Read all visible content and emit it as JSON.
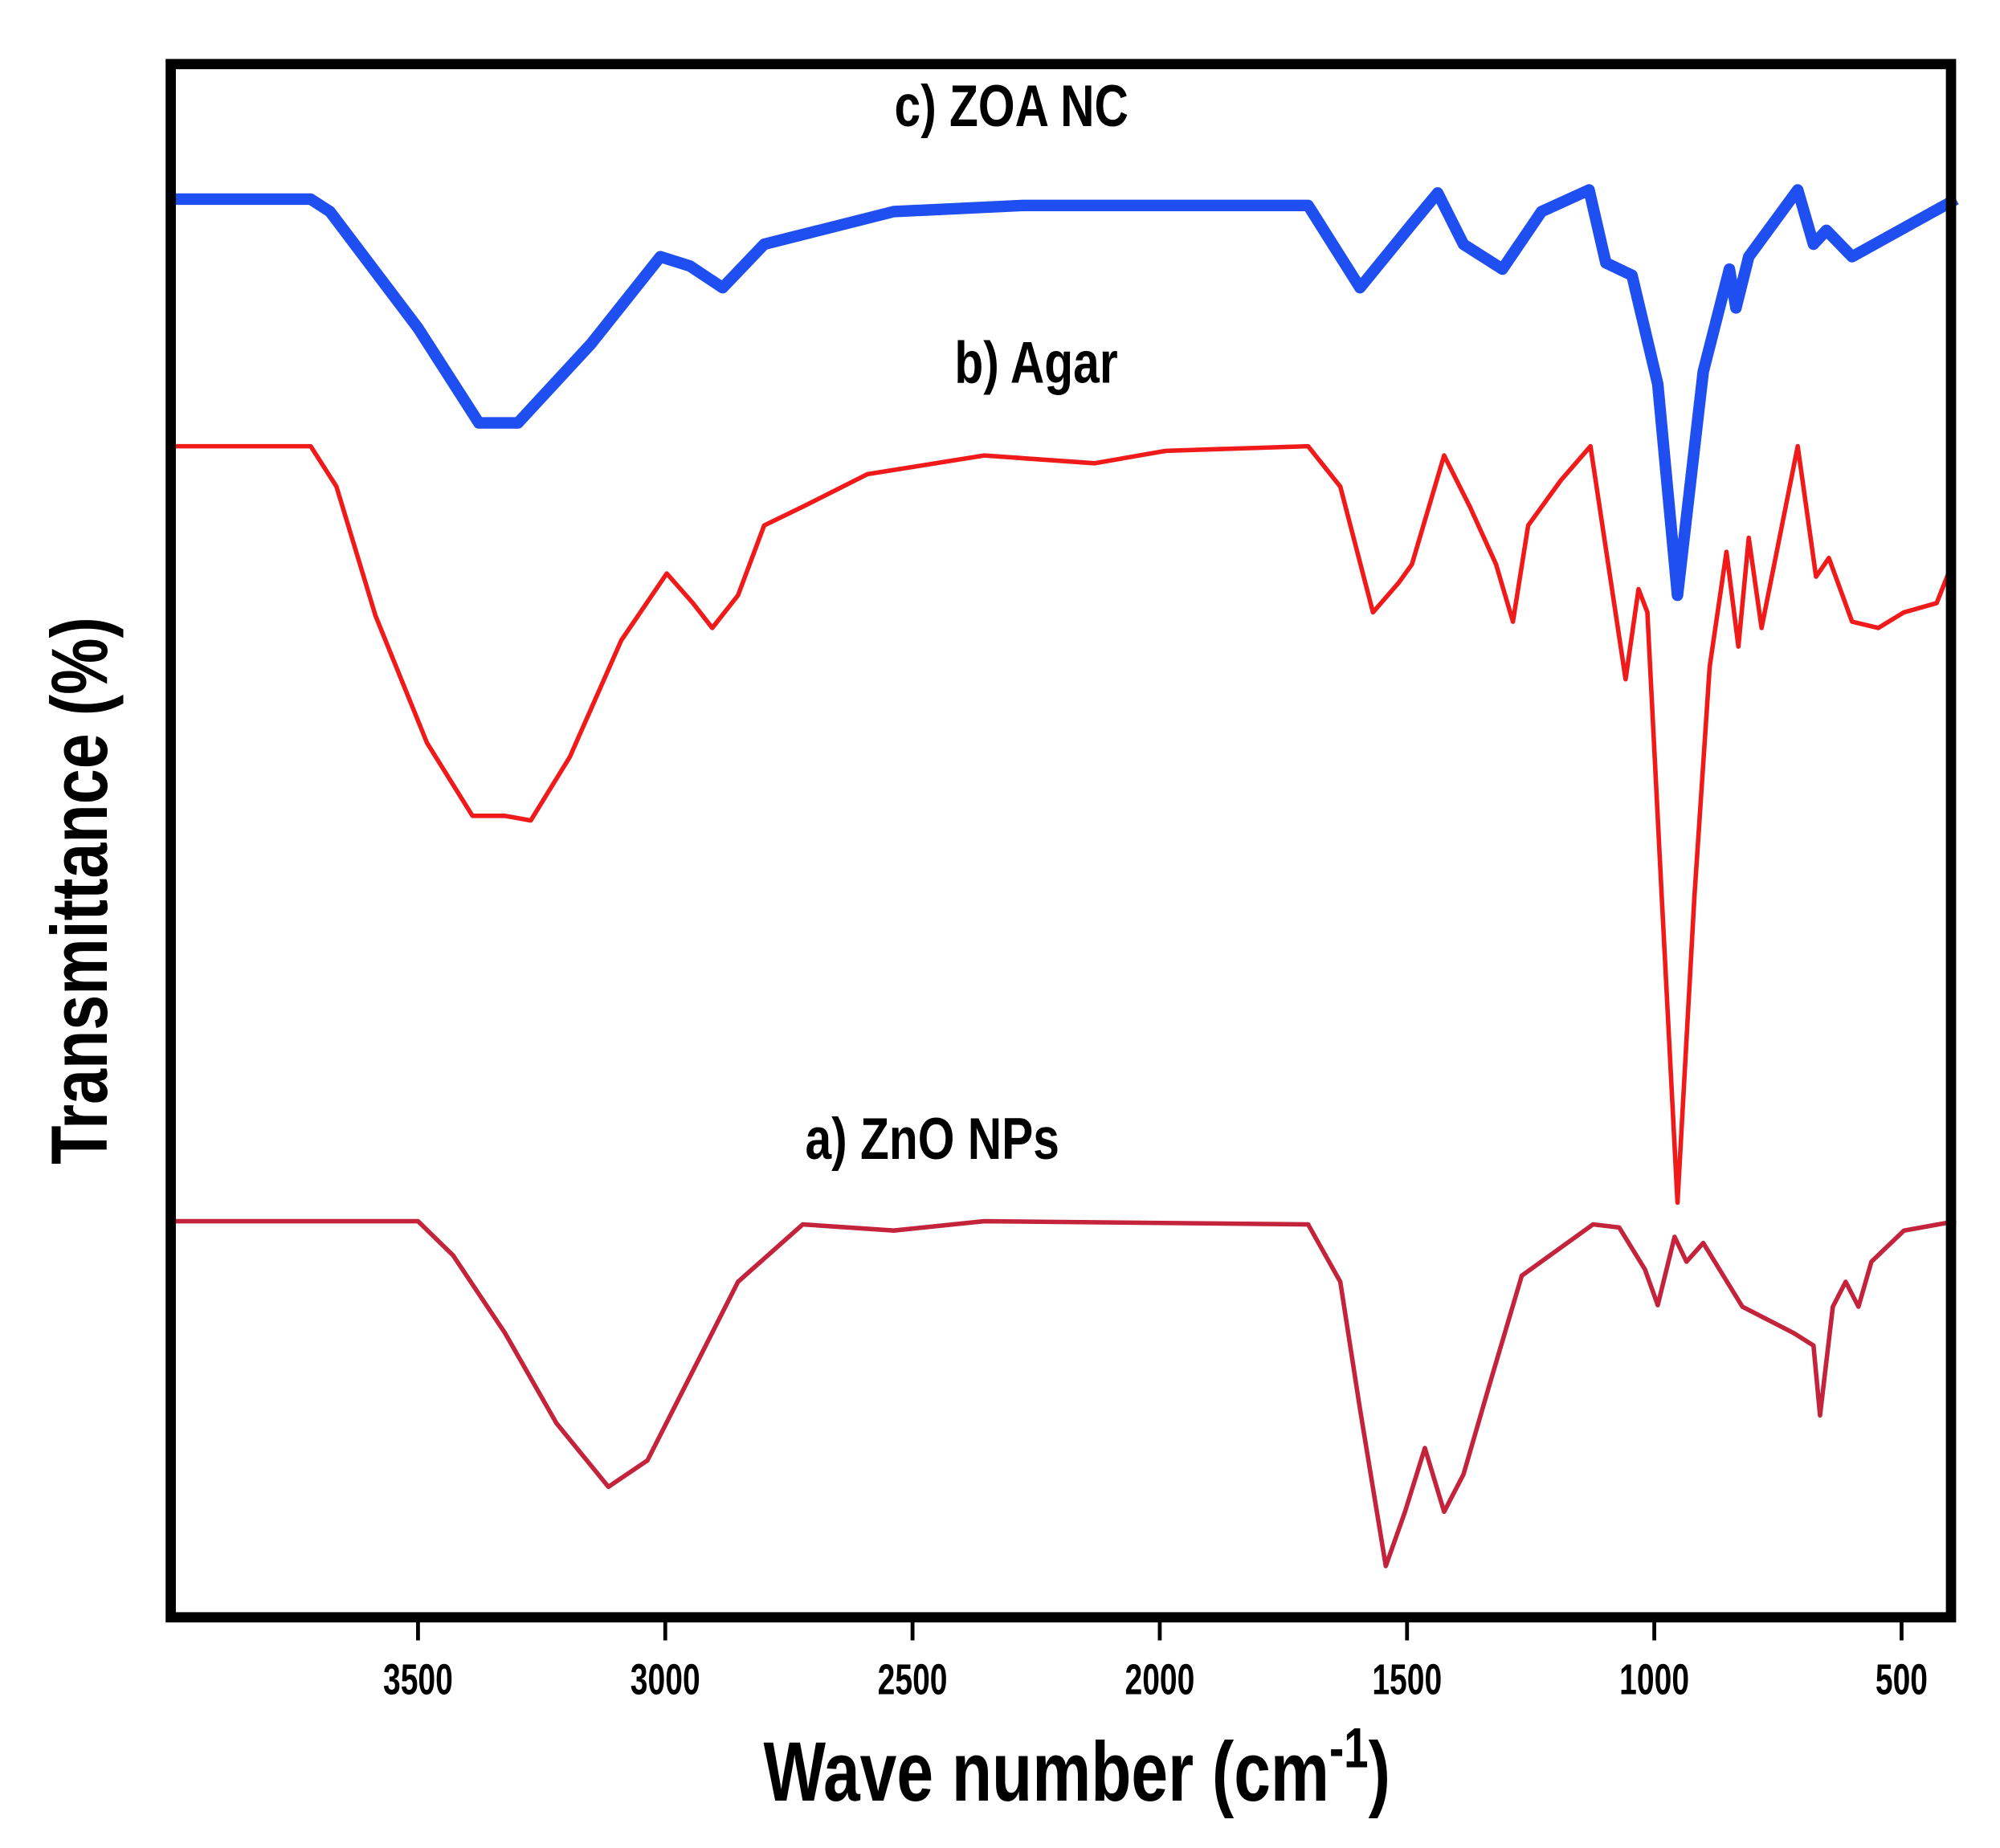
{
  "chart_data": {
    "type": "line",
    "title": "",
    "xlabel": "Wave number (cm",
    "xlabel_sup": "-1",
    "xlabel_end": ")",
    "ylabel": "Transmittance (%)",
    "xlim": [
      4000,
      400
    ],
    "x_reversed": true,
    "ylim": [
      0,
      100
    ],
    "y_ticks_shown": false,
    "grid": false,
    "legend": "none (labels placed above each curve)",
    "x_ticks": [
      3500,
      3000,
      2500,
      2000,
      1500,
      1000,
      500
    ],
    "x_tick_labels": [
      "3500",
      "3000",
      "2500",
      "2000",
      "1500",
      "1000",
      "500"
    ],
    "series": [
      {
        "name": "c) ZOA NC",
        "color": "#1f4ff0",
        "label_at": [
          2300,
          96
        ],
        "x": [
          4000,
          3717,
          3678,
          3500,
          3377,
          3298,
          3150,
          3010,
          2950,
          2884,
          2800,
          2538,
          2276,
          1700,
          1595,
          1490,
          1438,
          1386,
          1307,
          1228,
          1132,
          1098,
          1045,
          993,
          953,
          901,
          848,
          835,
          809,
          710,
          678,
          652,
          600,
          390
        ],
        "y": [
          91.3,
          91.3,
          90.5,
          83,
          76.9,
          76.9,
          82,
          87.6,
          87.0,
          85.6,
          88.4,
          90.5,
          90.9,
          90.9,
          85.6,
          89.7,
          91.7,
          88.4,
          86.8,
          90.5,
          91.9,
          87.2,
          86.4,
          79.4,
          65.8,
          80.2,
          86.8,
          84.3,
          87.6,
          91.9,
          88.4,
          89.3,
          87.6,
          91.3
        ]
      },
      {
        "name": "b) Agar",
        "color": "#f01a1a",
        "label_at": [
          2250,
          79.5
        ],
        "x": [
          4000,
          3717,
          3665,
          3586,
          3482,
          3390,
          3324,
          3272,
          3193,
          3089,
          2997,
          2944,
          2905,
          2853,
          2800,
          2722,
          2591,
          2355,
          2132,
          1988,
          1700,
          1635,
          1569,
          1517,
          1490,
          1425,
          1373,
          1320,
          1286,
          1255,
          1189,
          1129,
          1097,
          1058,
          1032,
          1014,
          985,
          953,
          919,
          888,
          854,
          830,
          809,
          783,
          710,
          673,
          647,
          600,
          547,
          495,
          429,
          398
        ],
        "y": [
          75.4,
          75.4,
          72.8,
          64.5,
          56.3,
          51.6,
          51.6,
          51.3,
          55.4,
          62.9,
          67.2,
          65.3,
          63.7,
          65.8,
          70.3,
          71.5,
          73.6,
          74.8,
          74.3,
          75.1,
          75.4,
          72.8,
          64.7,
          66.6,
          67.8,
          74.8,
          71.5,
          67.8,
          64.1,
          70.3,
          73.2,
          75.4,
          68.6,
          60.4,
          66.2,
          64.7,
          46.4,
          26.7,
          46.4,
          61.2,
          68.6,
          62.5,
          69.5,
          63.7,
          75.4,
          67.0,
          68.2,
          64.1,
          63.7,
          64.7,
          65.3,
          67.8
        ]
      },
      {
        "name": "a) ZnO NPs",
        "color": "#c4233c",
        "label_at": [
          2460,
          29.5
        ],
        "x": [
          4000,
          3500,
          3429,
          3324,
          3220,
          3115,
          3036,
          2931,
          2853,
          2722,
          2538,
          2355,
          1700,
          1635,
          1595,
          1543,
          1504,
          1464,
          1425,
          1386,
          1333,
          1268,
          1124,
          1071,
          1019,
          993,
          959,
          935,
          901,
          822,
          718,
          678,
          665,
          639,
          613,
          587,
          561,
          495,
          390
        ],
        "y": [
          25.5,
          25.5,
          23.3,
          18.3,
          12.5,
          8.4,
          10.1,
          16.7,
          21.6,
          25.3,
          24.9,
          25.5,
          25.3,
          21.6,
          13.4,
          3.3,
          6.8,
          10.9,
          6.8,
          9.2,
          15.0,
          22.0,
          25.3,
          25.1,
          22.4,
          20.1,
          24.5,
          22.9,
          24.1,
          20.0,
          18.3,
          17.5,
          13.0,
          20.0,
          21.6,
          20.0,
          22.9,
          24.9,
          25.5
        ]
      }
    ]
  }
}
